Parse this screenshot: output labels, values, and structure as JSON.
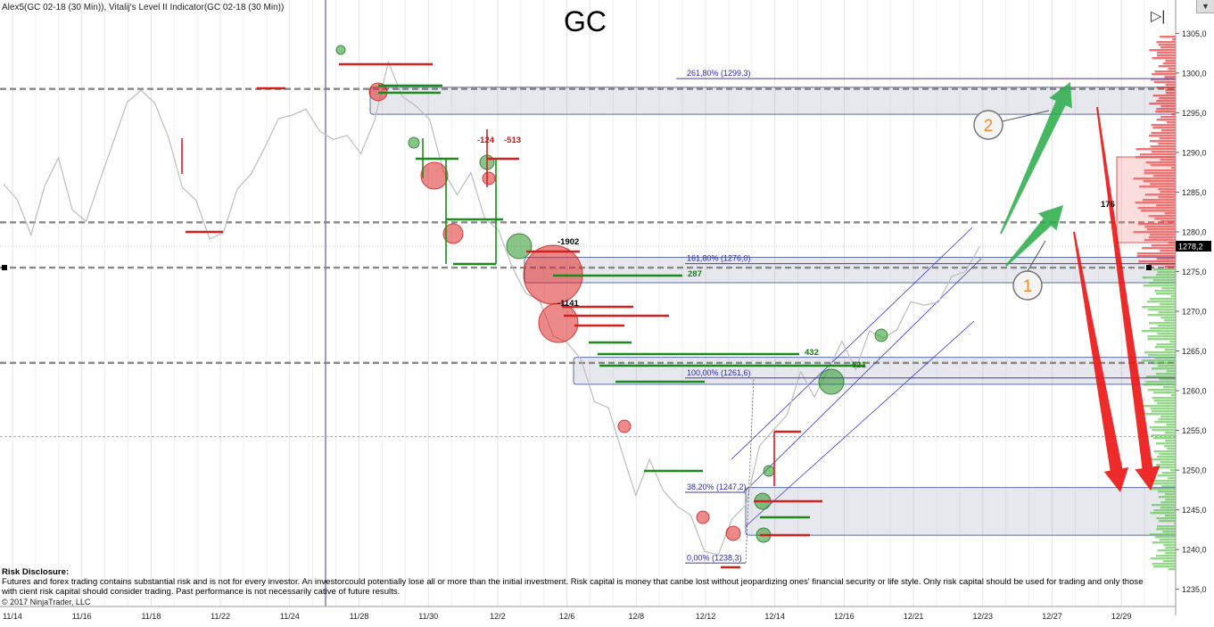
{
  "header": {
    "indicators": "Alex5(GC 02-18 (30 Min)), Vitalij's Level II Indicator(GC 02-18 (30 Min))",
    "symbol": "GC"
  },
  "disclosure": {
    "title": "Risk Disclosure:",
    "line1": "Futures and forex trading contains substantial risk and is not for every investor. An investorcould potentially lose all or more than the initial investment. Risk capital is money that canbe lost without jeopardizing ones' financial security or life style. Only risk capital should be used for trading and only those",
    "line2": "with cient risk capital should consider trading. Past performance is not necessarily cative of future results."
  },
  "copyright": "© 2017 NinjaTrader, LLC",
  "controls": {
    "corner_glyph": "▼",
    "tool_glyph": "▷|"
  },
  "chart_data": {
    "type": "line",
    "title": "GC",
    "ylim": [
      1233.5,
      1306.5
    ],
    "yticks": [
      "1235,0",
      "1240,0",
      "1245,0",
      "1250,0",
      "1255,0",
      "1260,0",
      "1265,0",
      "1270,0",
      "1275,0",
      "1280,0",
      "1285,0",
      "1290,0",
      "1295,0",
      "1300,0",
      "1305,0"
    ],
    "ytick_values": [
      1235,
      1240,
      1245,
      1250,
      1255,
      1260,
      1265,
      1270,
      1275,
      1280,
      1285,
      1290,
      1295,
      1300,
      1305
    ],
    "xticks": [
      "11/14",
      "11/16",
      "11/18",
      "11/22",
      "11/24",
      "11/28",
      "11/30",
      "12/2",
      "12/6",
      "12/8",
      "12/12",
      "12/14",
      "12/16",
      "12/21",
      "12/23",
      "12/27",
      "12/29"
    ],
    "current_price_label": "1278,2",
    "current_price": 1278.2,
    "fib_levels": [
      {
        "label": "261,80% (1299,3)",
        "value": 1299.3
      },
      {
        "label": "161,80% (1276,0)",
        "value": 1276.0
      },
      {
        "label": "100,00% (1261,6)",
        "value": 1261.6
      },
      {
        "label": "38,20% (1247,2)",
        "value": 1247.2
      },
      {
        "label": "0,00% (1238,3)",
        "value": 1238.3
      }
    ],
    "dashed_levels": [
      1298.0,
      1281.2,
      1275.5,
      1263.5,
      1254.2
    ],
    "zones": [
      {
        "low": 1294.8,
        "high": 1298.2
      },
      {
        "low": 1273.6,
        "high": 1276.8
      },
      {
        "low": 1260.8,
        "high": 1264.2
      },
      {
        "low": 1241.8,
        "high": 1247.8
      }
    ],
    "volume_labels": [
      "-1902",
      "-1141",
      "-124",
      "-513",
      "287",
      "432",
      "521",
      "176"
    ],
    "annotation_labels": [
      "1",
      "2"
    ],
    "price_series": [
      1286,
      1283,
      1281,
      1285,
      1289,
      1284,
      1280,
      1287,
      1292,
      1295,
      1299,
      1296,
      1291,
      1287,
      1283,
      1279,
      1281,
      1284,
      1288,
      1291,
      1293,
      1296,
      1295,
      1292,
      1293,
      1291,
      1290,
      1295,
      1300,
      1298,
      1296,
      1293,
      1289,
      1284,
      1287,
      1283,
      1279,
      1276,
      1273,
      1270,
      1268,
      1266,
      1263,
      1260,
      1257,
      1252,
      1248,
      1250,
      1248,
      1246,
      1243,
      1241,
      1239,
      1243,
      1247,
      1252,
      1255,
      1258,
      1261,
      1260,
      1263,
      1265,
      1264,
      1267,
      1266,
      1269,
      1270,
      1271,
      1272,
      1273,
      1276,
      1278.2
    ]
  }
}
